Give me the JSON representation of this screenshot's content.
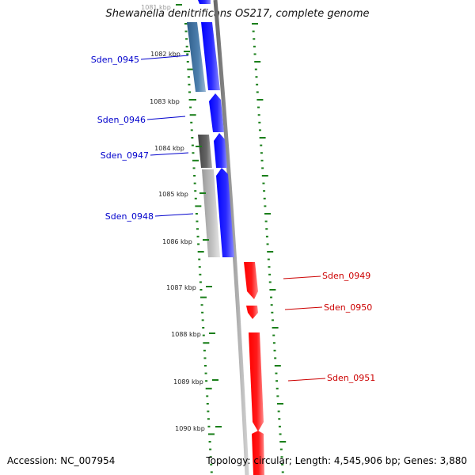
{
  "title": "Shewanella denitrificans OS217, complete genome",
  "accession": "Accession: NC_007954",
  "summary": "Topology: circular; Length: 4,545,906 bp; Genes: 3,880",
  "ticks": [
    "1081 kbp",
    "1082 kbp",
    "1083 kbp",
    "1084 kbp",
    "1085 kbp",
    "1086 kbp",
    "1087 kbp",
    "1088 kbp",
    "1089 kbp",
    "1090 kbp"
  ],
  "genes": [
    {
      "label": "Sden_0945",
      "strand": "forward",
      "color": "#0000cc"
    },
    {
      "label": "Sden_0946",
      "strand": "forward",
      "color": "#0000cc"
    },
    {
      "label": "Sden_0947",
      "strand": "forward",
      "color": "#0000cc"
    },
    {
      "label": "Sden_0948",
      "strand": "forward",
      "color": "#0000cc"
    },
    {
      "label": "Sden_0949",
      "strand": "reverse",
      "color": "#cc0000"
    },
    {
      "label": "Sden_0950",
      "strand": "reverse",
      "color": "#cc0000"
    },
    {
      "label": "Sden_0951",
      "strand": "reverse",
      "color": "#cc0000"
    }
  ],
  "colors": {
    "forward_cds": "#0000ff",
    "reverse_cds": "#ff0000",
    "backbone": "#888888",
    "gc_skew": "#1a7f1a"
  }
}
